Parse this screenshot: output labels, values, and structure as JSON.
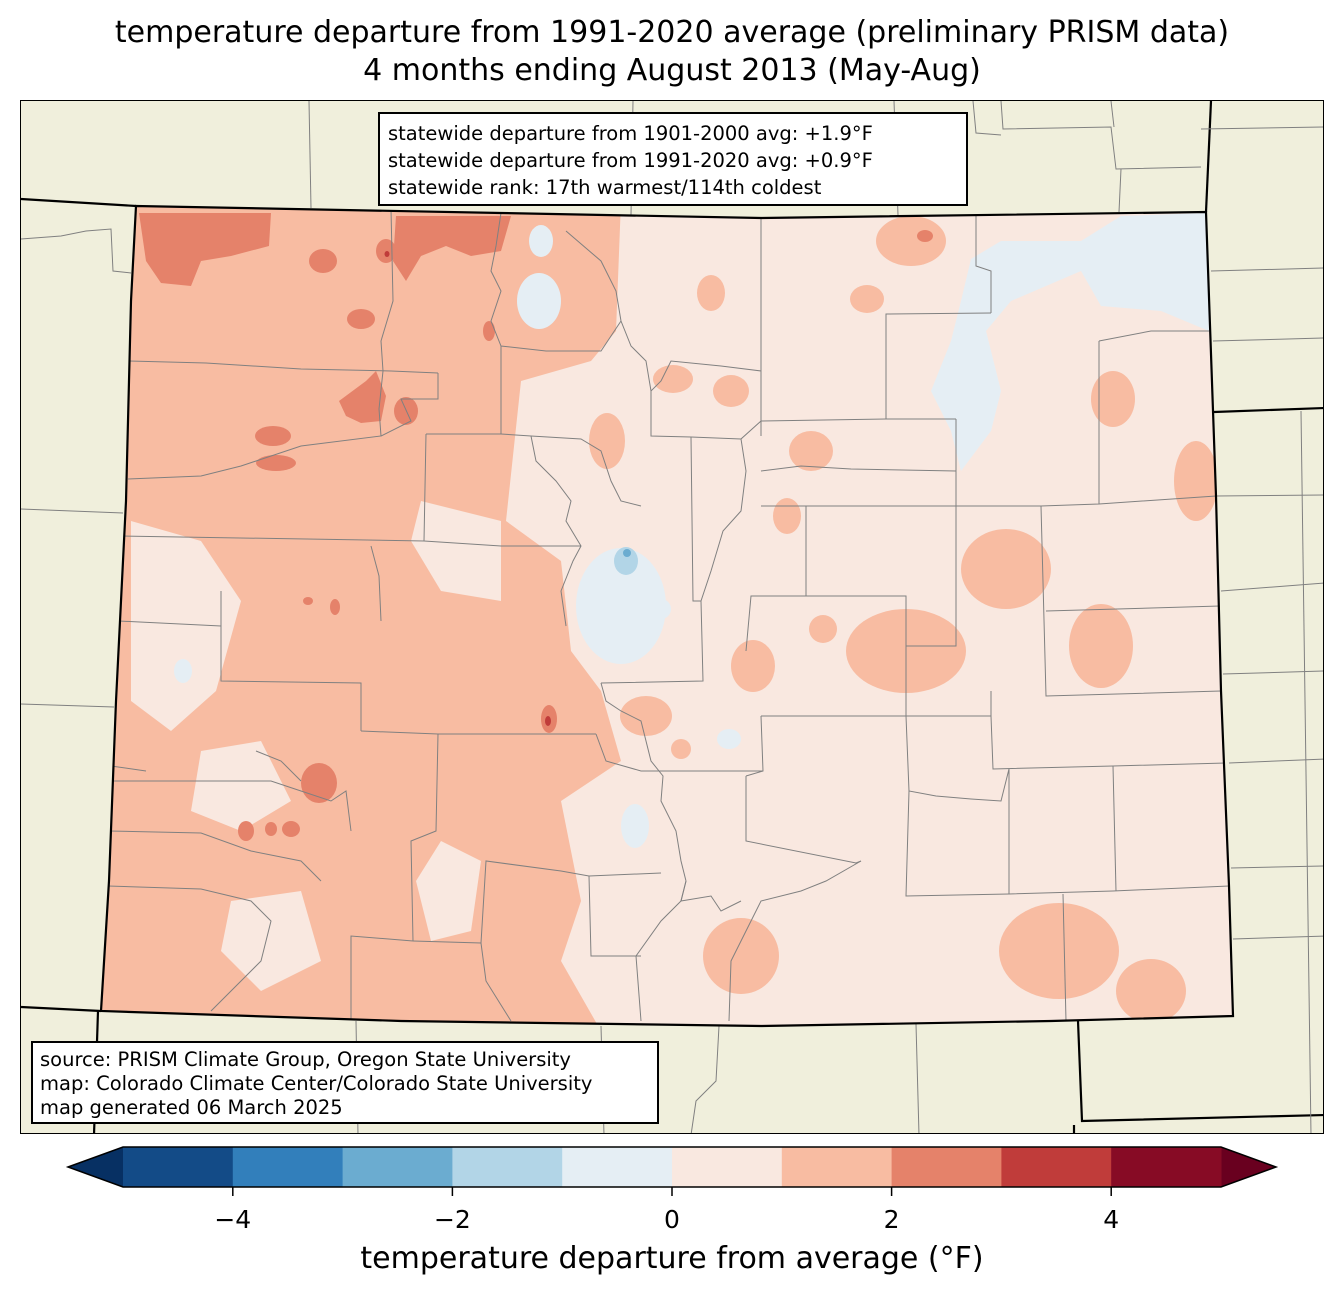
{
  "title": {
    "line1": "temperature departure from 1991-2020 average (preliminary PRISM data)",
    "line2": "4 months ending August 2013 (May-Aug)"
  },
  "stats": {
    "line1": "statewide departure from 1901-2000 avg: +1.9°F",
    "line2": "statewide departure from 1991-2020 avg: +0.9°F",
    "line3": "statewide rank: 17th warmest/114th coldest"
  },
  "source": {
    "line1": "source: PRISM Climate Group, Oregon State University",
    "line2": "map: Colorado Climate Center/Colorado State University",
    "line3": "map generated 06 March 2025"
  },
  "colorbar": {
    "label": "temperature departure from average (°F)",
    "range": [
      -5,
      5
    ],
    "levels": [
      -5,
      -4,
      -3,
      -2,
      -1,
      0,
      1,
      2,
      3,
      4,
      5
    ],
    "colors": [
      "#134b87",
      "#327fbb",
      "#6bacd0",
      "#b2d5e7",
      "#e5eef4",
      "#f9e8e0",
      "#f8bca2",
      "#e5826a",
      "#c03c3a",
      "#870b25"
    ],
    "extend_low_color": "#073063",
    "extend_high_color": "#69001f",
    "tick_values": [
      -4,
      -2,
      0,
      2,
      4
    ],
    "tick_labels": [
      "−4",
      "−2",
      "0",
      "2",
      "4"
    ]
  },
  "colors": {
    "land_background": "#f0efdc",
    "state_border": "#000000",
    "county_border": "#808080"
  }
}
